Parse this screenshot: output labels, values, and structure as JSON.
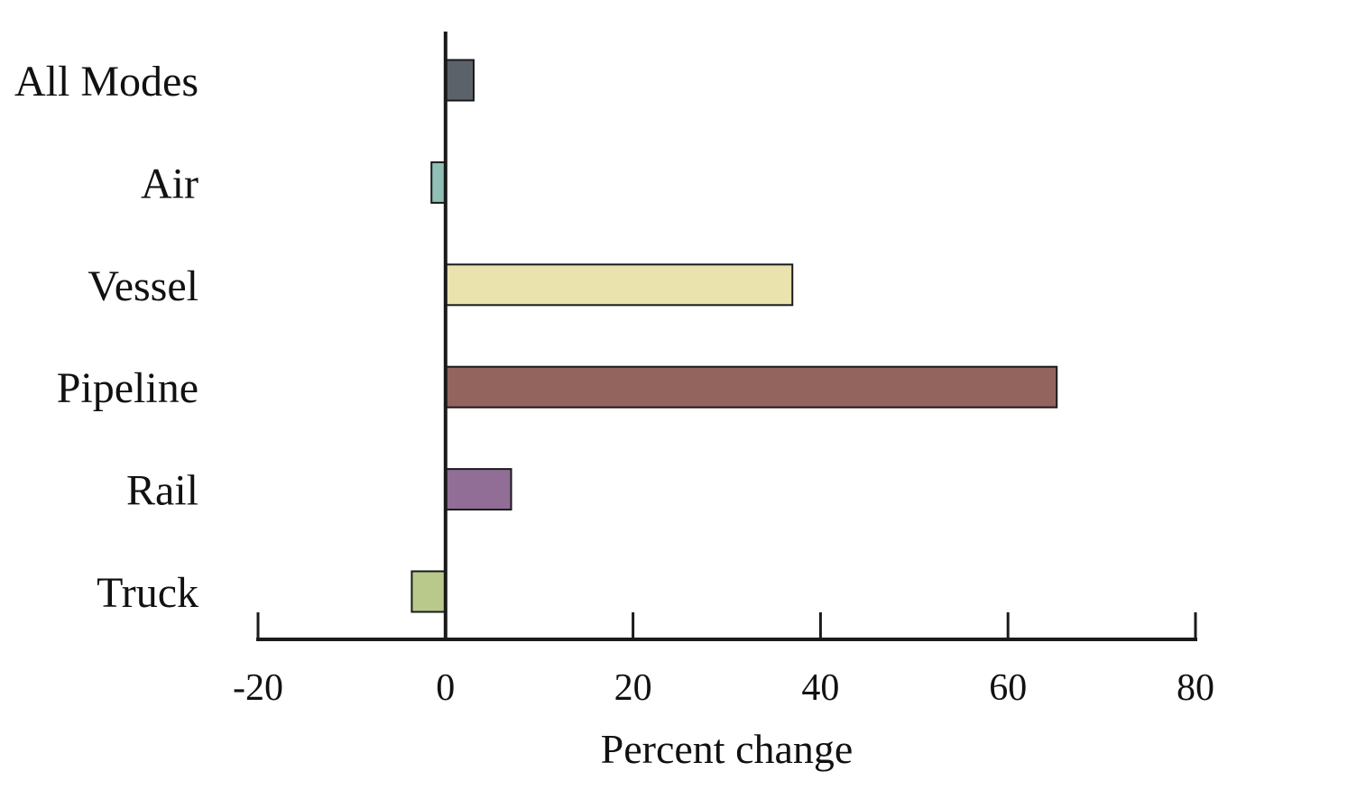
{
  "chart_data": {
    "type": "bar",
    "orientation": "horizontal",
    "title": "",
    "xlabel": "Percent change",
    "ylabel": "",
    "xlim": [
      -20,
      80
    ],
    "xticks": [
      -20,
      0,
      20,
      40,
      60,
      80
    ],
    "grid": false,
    "legend": "none",
    "categories": [
      "All Modes",
      "Air",
      "Vessel",
      "Pipeline",
      "Rail",
      "Truck"
    ],
    "values": [
      3,
      -1.5,
      37,
      65.2,
      7,
      -3.6
    ],
    "colors": [
      "#5c626a",
      "#8fbfb5",
      "#ebe3ae",
      "#93645e",
      "#906e96",
      "#b9c98b"
    ]
  }
}
